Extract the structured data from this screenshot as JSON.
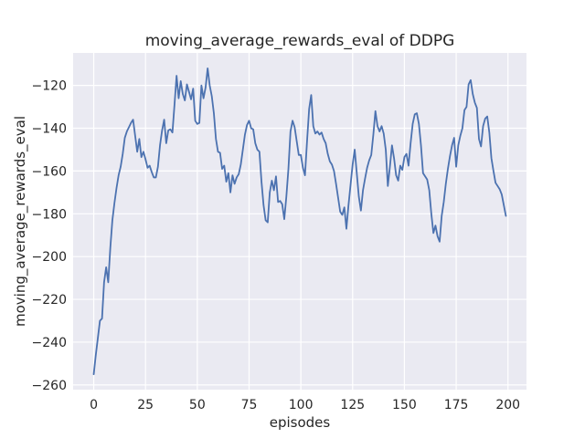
{
  "figure": {
    "background_color": "#ffffff",
    "plot_background_color": "#eaeaf2",
    "grid_color": "#ffffff",
    "line_color": "#4c72b0",
    "text_color": "#262626"
  },
  "chart_data": {
    "type": "line",
    "title": "moving_average_rewards_eval of DDPG",
    "xlabel": "episodes",
    "ylabel": "moving_average_rewards_eval",
    "grid": true,
    "legend": false,
    "x_ticks": [
      0,
      25,
      50,
      75,
      100,
      125,
      150,
      175,
      200
    ],
    "x_tick_labels": [
      "0",
      "25",
      "50",
      "75",
      "100",
      "125",
      "150",
      "175",
      "200"
    ],
    "y_ticks": [
      -120,
      -140,
      -160,
      -180,
      -200,
      -220,
      -240,
      -260
    ],
    "y_tick_labels": [
      "−120",
      "−140",
      "−160",
      "−180",
      "−200",
      "−220",
      "−240",
      "−260"
    ],
    "xlim": [
      -9.95,
      208.95
    ],
    "ylim": [
      -262.2,
      -104.8
    ],
    "series": [
      {
        "name": "moving_average_rewards_eval",
        "x_start": 0,
        "x_step": 1,
        "values": [
          -255,
          -246,
          -238,
          -230,
          -229,
          -212,
          -205,
          -212,
          -196,
          -183,
          -175,
          -168,
          -162,
          -158,
          -152,
          -144.5,
          -141.5,
          -139.5,
          -137.5,
          -136,
          -143.5,
          -151,
          -145,
          -153.5,
          -151,
          -154.5,
          -158.5,
          -157.5,
          -160.5,
          -163,
          -163,
          -158,
          -148,
          -141,
          -136,
          -147,
          -141,
          -140.5,
          -142,
          -129,
          -115.5,
          -126,
          -118,
          -124,
          -127,
          -119.5,
          -123,
          -126.5,
          -121.5,
          -136.5,
          -138,
          -137.5,
          -120,
          -126,
          -121,
          -112,
          -120,
          -125,
          -133,
          -145,
          -151,
          -151.5,
          -159,
          -157.5,
          -165,
          -161,
          -170,
          -162,
          -166,
          -163,
          -161.5,
          -157,
          -150,
          -143,
          -138.5,
          -136.5,
          -140,
          -140.5,
          -147,
          -150,
          -151,
          -165,
          -176,
          -183,
          -184,
          -170,
          -164.5,
          -169,
          -162.5,
          -174.5,
          -174,
          -175.5,
          -182.5,
          -172,
          -159,
          -141.5,
          -136.5,
          -139.5,
          -146,
          -152.5,
          -152.5,
          -158.5,
          -162,
          -146,
          -131,
          -124.5,
          -139,
          -142.5,
          -141.5,
          -143,
          -142,
          -145,
          -147,
          -152,
          -155.5,
          -157,
          -160,
          -166,
          -172.5,
          -179,
          -180.5,
          -177,
          -187,
          -176,
          -166.5,
          -157,
          -150,
          -161,
          -172,
          -178.5,
          -169,
          -163.5,
          -158.5,
          -155,
          -152.5,
          -143,
          -132,
          -139,
          -141.5,
          -139,
          -142.5,
          -150,
          -167,
          -158,
          -148,
          -154,
          -162,
          -164.5,
          -157.5,
          -159.5,
          -153.5,
          -152,
          -157.5,
          -147,
          -138,
          -133.5,
          -133,
          -138,
          -148,
          -161,
          -162.5,
          -164,
          -169,
          -180,
          -189,
          -185.5,
          -190.5,
          -193,
          -181,
          -174.5,
          -166,
          -159,
          -153,
          -148,
          -144.5,
          -158,
          -148,
          -143.5,
          -140,
          -131.5,
          -130,
          -119.5,
          -117.5,
          -124,
          -128,
          -130.5,
          -145,
          -148.5,
          -139,
          -135.5,
          -134.5,
          -142,
          -154,
          -160,
          -165.5,
          -167,
          -168.5,
          -171,
          -176,
          -181
        ]
      }
    ]
  }
}
